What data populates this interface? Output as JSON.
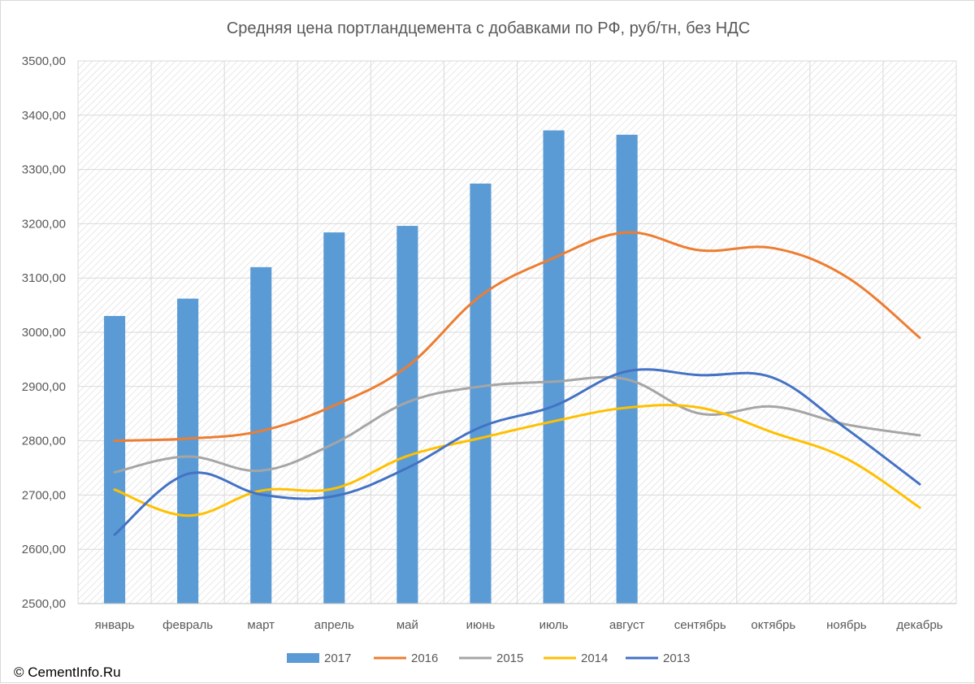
{
  "chart_data": {
    "type": "bar",
    "title": "Средняя цена портландцемента с добавками по РФ, руб/тн, без НДС",
    "xlabel": "",
    "ylabel": "",
    "categories": [
      "январь",
      "февраль",
      "март",
      "апрель",
      "май",
      "июнь",
      "июль",
      "август",
      "сентябрь",
      "октябрь",
      "ноябрь",
      "декабрь"
    ],
    "ylim": [
      2500,
      3500
    ],
    "yticks": [
      "2500,00",
      "2600,00",
      "2700,00",
      "2800,00",
      "2900,00",
      "3000,00",
      "3100,00",
      "3200,00",
      "3300,00",
      "3400,00",
      "3500,00"
    ],
    "grid": true,
    "legend_position": "bottom",
    "series": [
      {
        "name": "2017",
        "kind": "bar",
        "color": "#5b9bd5",
        "values": [
          3030,
          3062,
          3120,
          3184,
          3196,
          3274,
          3372,
          3364,
          null,
          null,
          null,
          null
        ]
      },
      {
        "name": "2016",
        "kind": "line",
        "color": "#ed7d31",
        "values": [
          2800,
          2804,
          2818,
          2865,
          2937,
          3067,
          3137,
          3184,
          3151,
          3155,
          3102,
          2990
        ]
      },
      {
        "name": "2015",
        "kind": "line",
        "color": "#a5a5a5",
        "values": [
          2742,
          2771,
          2745,
          2795,
          2871,
          2900,
          2909,
          2913,
          2850,
          2863,
          2830,
          2810
        ]
      },
      {
        "name": "2014",
        "kind": "line",
        "color": "#ffc000",
        "values": [
          2710,
          2662,
          2708,
          2712,
          2772,
          2805,
          2836,
          2861,
          2861,
          2815,
          2767,
          2677
        ]
      },
      {
        "name": "2013",
        "kind": "line",
        "color": "#4472c4",
        "values": [
          2627,
          2739,
          2701,
          2698,
          2750,
          2825,
          2864,
          2928,
          2921,
          2916,
          2822,
          2720
        ]
      }
    ]
  },
  "footer": {
    "copyright": "© CementInfo.Ru"
  }
}
